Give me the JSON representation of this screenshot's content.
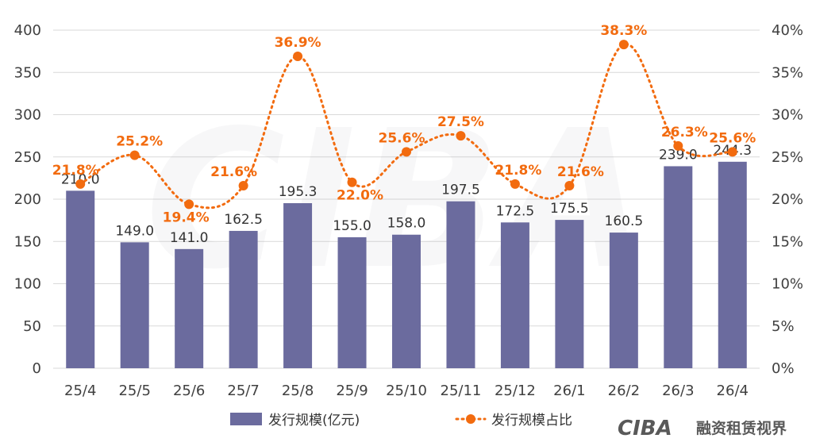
{
  "chart_data": {
    "type": "bar",
    "categories": [
      "25/4",
      "25/5",
      "25/6",
      "25/7",
      "25/8",
      "25/9",
      "25/10",
      "25/11",
      "25/12",
      "26/1",
      "26/2",
      "26/3",
      "26/4"
    ],
    "series": [
      {
        "name": "发行规模(亿元)",
        "type": "bar",
        "axis": "left",
        "values": [
          210.0,
          149.0,
          141.0,
          162.5,
          195.3,
          155.0,
          158.0,
          197.5,
          172.5,
          175.5,
          160.5,
          239.0,
          244.3
        ],
        "labels": [
          "210.0",
          "149.0",
          "141.0",
          "162.5",
          "195.3",
          "155.0",
          "158.0",
          "197.5",
          "172.5",
          "175.5",
          "160.5",
          "239.0",
          "244.3"
        ]
      },
      {
        "name": "发行规模占比",
        "type": "line",
        "axis": "right",
        "values": [
          21.8,
          25.2,
          19.4,
          21.6,
          36.9,
          22.0,
          25.6,
          27.5,
          21.8,
          21.6,
          38.3,
          26.3,
          25.6
        ],
        "labels": [
          "21.8%",
          "25.2%",
          "19.4%",
          "21.6%",
          "36.9%",
          "22.0%",
          "25.6%",
          "27.5%",
          "21.8%",
          "21.6%",
          "38.3%",
          "26.3%",
          "25.6%"
        ]
      }
    ],
    "y_left": {
      "ylim": [
        0,
        400
      ],
      "ticks": [
        "0",
        "50",
        "100",
        "150",
        "200",
        "250",
        "300",
        "350",
        "400"
      ]
    },
    "y_right": {
      "ylim": [
        0,
        40
      ],
      "ticks": [
        "0%",
        "5%",
        "10%",
        "15%",
        "20%",
        "25%",
        "30%",
        "35%",
        "40%"
      ]
    },
    "grid": true,
    "legend": "bottom",
    "colors": {
      "bar": "#6B6B9E",
      "line": "#F26B0F",
      "grid": "#D9D9D9"
    }
  },
  "watermark": {
    "text": "CIBA"
  },
  "brand": {
    "logo": "CIBA",
    "name": "融资租赁视界"
  }
}
